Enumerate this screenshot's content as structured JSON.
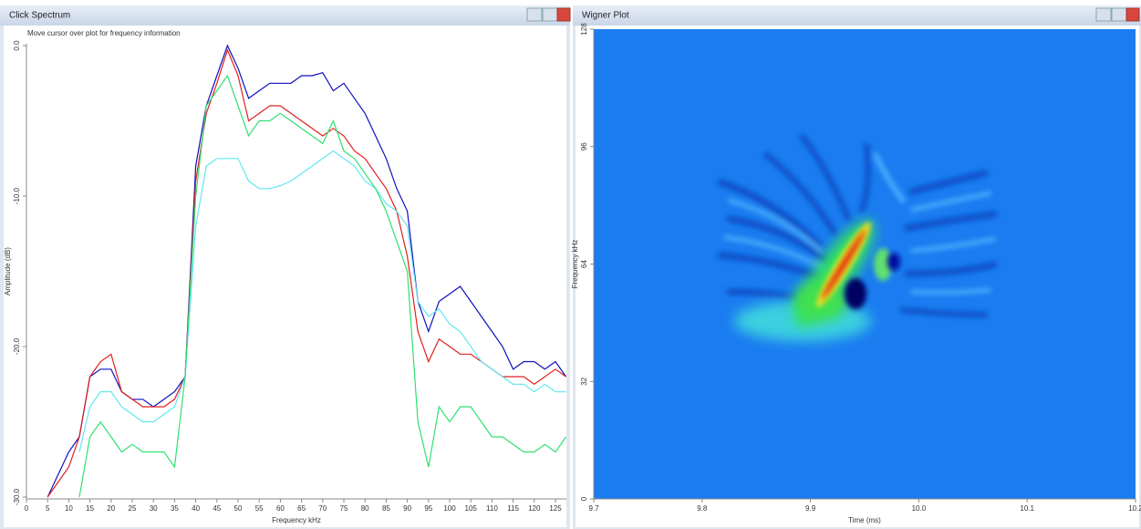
{
  "windows": [
    {
      "title": "Click Spectrum",
      "hint": "Move cursor over plot for frequency information"
    },
    {
      "title": "Wigner Plot"
    }
  ],
  "chart_data": [
    {
      "type": "line",
      "xlabel": "Frequency kHz",
      "ylabel": "Amplitude (dB)",
      "x": [
        5,
        7.5,
        10,
        12.5,
        15,
        17.5,
        20,
        22.5,
        25,
        27.5,
        30,
        32.5,
        35,
        37.5,
        40,
        42.5,
        45,
        47.5,
        50,
        52.5,
        55,
        57.5,
        60,
        62.5,
        65,
        67.5,
        70,
        72.5,
        75,
        77.5,
        80,
        82.5,
        85,
        87.5,
        90,
        92.5,
        95,
        97.5,
        100,
        102.5,
        105,
        107.5,
        110,
        112.5,
        115,
        117.5,
        120,
        122.5,
        125,
        127.5
      ],
      "series": [
        {
          "color": "#1010c0",
          "values": [
            -30,
            -28.5,
            -27,
            -26,
            -22,
            -21.5,
            -21.5,
            -23,
            -23.5,
            -23.5,
            -24,
            -23.5,
            -23,
            -22,
            -8,
            -4,
            -2,
            0,
            -1.5,
            -3.5,
            -3,
            -2.5,
            -2.5,
            -2.5,
            -2,
            -2,
            -1.8,
            -3,
            -2.5,
            -3.5,
            -4.5,
            -6,
            -7.5,
            -9.5,
            -11,
            -17,
            -19,
            -17,
            -16.5,
            -16,
            -17,
            -18,
            -19,
            -20,
            -21.5,
            -21,
            -21,
            -21.5,
            -21,
            -22
          ]
        },
        {
          "color": "#e02020",
          "values": [
            -30,
            -29,
            -28,
            -26,
            -22,
            -21,
            -20.5,
            -23,
            -23.5,
            -24,
            -24,
            -24,
            -23.5,
            -22,
            -9,
            -4.5,
            -2.5,
            -0.3,
            -2,
            -5,
            -4.5,
            -4,
            -4,
            -4.5,
            -5,
            -5.5,
            -6,
            -5.5,
            -6,
            -7,
            -7.5,
            -8.5,
            -9.5,
            -11,
            -14,
            -19,
            -21,
            -19.5,
            -20,
            -20.5,
            -20.5,
            -21,
            -21.5,
            -22,
            -22,
            -22,
            -22.5,
            -22,
            -21.5,
            -22
          ]
        },
        {
          "color": "#60e8f0",
          "values": [
            null,
            null,
            null,
            -27,
            -24,
            -23,
            -23,
            -24,
            -24.5,
            -25,
            -25,
            -24.5,
            -24,
            -22,
            -12,
            -8,
            -7.5,
            -7.5,
            -7.5,
            -9,
            -9.5,
            -9.5,
            -9.3,
            -9,
            -8.5,
            -8,
            -7.5,
            -7,
            -7.5,
            -8,
            -9,
            -9.5,
            -10.5,
            -11,
            -12,
            -17,
            -18,
            -17.5,
            -18.5,
            -19,
            -20,
            -21,
            -21.5,
            -22,
            -22.5,
            -22.5,
            -23,
            -22.5,
            -23,
            -23
          ]
        },
        {
          "color": "#30e070",
          "values": [
            null,
            null,
            null,
            -30,
            -26,
            -25,
            -26,
            -27,
            -26.5,
            -27,
            -27,
            -27,
            -28,
            -22,
            -10,
            -4,
            -3,
            -2,
            -4,
            -6,
            -5,
            -5,
            -4.5,
            -5,
            -5.5,
            -6,
            -6.5,
            -5,
            -7,
            -7.5,
            -8.5,
            -9.5,
            -11,
            -13,
            -15,
            -25,
            -28,
            -24,
            -25,
            -24,
            -24,
            -25,
            -26,
            -26,
            -26.5,
            -27,
            -27,
            -26.5,
            -27,
            -26
          ]
        }
      ],
      "xlim": [
        0,
        128
      ],
      "xticks": [
        0,
        5,
        10,
        15,
        20,
        25,
        30,
        35,
        40,
        45,
        50,
        55,
        60,
        65,
        70,
        75,
        80,
        85,
        90,
        95,
        100,
        105,
        110,
        115,
        120,
        125
      ],
      "ylim": [
        -30,
        0
      ],
      "yticks": [
        {
          "value": -30,
          "label": "-30.0"
        },
        {
          "value": -20,
          "label": "-20.0"
        },
        {
          "value": -10,
          "label": "-10.0"
        },
        {
          "value": 0,
          "label": "0.0"
        }
      ]
    },
    {
      "type": "heatmap",
      "xlabel": "Time (ms)",
      "ylabel": "Frequency kHz",
      "xlim": [
        9.7,
        10.2
      ],
      "xticks": [
        9.7,
        9.8,
        9.9,
        {
          "value": 10,
          "label": "10.0"
        },
        10.1,
        10.2
      ],
      "ylim": [
        0,
        128
      ],
      "yticks": [
        0,
        32,
        64,
        96,
        128
      ]
    }
  ]
}
